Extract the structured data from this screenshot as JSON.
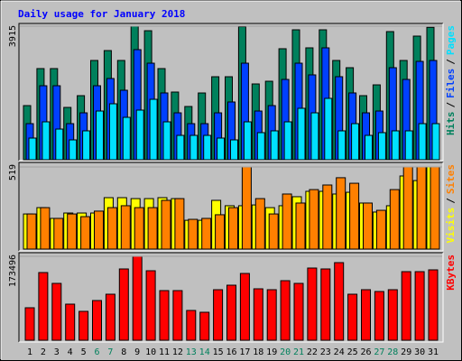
{
  "chart_data": [
    {
      "type": "bar",
      "title": "Daily usage for January 2018",
      "title_color": "#0000ff",
      "ylim": [
        0,
        3915
      ],
      "yticks": [
        3915
      ],
      "legend_separator": "/",
      "series": [
        {
          "name": "Hits",
          "color": "#00805c",
          "values": [
            1587,
            2672,
            2672,
            1534,
            1878,
            2910,
            3200,
            2910,
            3915,
            3782,
            2672,
            1984,
            1561,
            1957,
            2433,
            2433,
            3900,
            2222,
            2301,
            3254,
            3809,
            3280,
            3809,
            2910,
            2698,
            1878,
            2195,
            3756,
            2910,
            3624,
            3880
          ]
        },
        {
          "name": "Files",
          "color": "#0040ff",
          "values": [
            1058,
            2169,
            2169,
            1058,
            1375,
            2169,
            2381,
            2037,
            3227,
            2830,
            1958,
            1375,
            1058,
            1058,
            1375,
            1693,
            2830,
            1428,
            1587,
            2354,
            2830,
            2487,
            3280,
            2434,
            1958,
            1375,
            1428,
            2698,
            2354,
            2883,
            2910
          ]
        },
        {
          "name": "Pages",
          "color": "#00e0ff",
          "values": [
            635,
            1111,
            899,
            582,
            847,
            1428,
            1640,
            1243,
            1455,
            1772,
            1111,
            714,
            714,
            714,
            635,
            582,
            1111,
            794,
            847,
            1111,
            1508,
            1375,
            1799,
            847,
            1058,
            714,
            794,
            847,
            847,
            1058,
            1058
          ]
        }
      ]
    },
    {
      "type": "bar",
      "ylim": [
        0,
        519
      ],
      "yticks": [
        519
      ],
      "legend_separator": "/",
      "series": [
        {
          "name": "Visits",
          "color": "#ffff00",
          "values": [
            222,
            262,
            194,
            228,
            228,
            228,
            325,
            325,
            319,
            319,
            325,
            319,
            182,
            182,
            308,
            274,
            274,
            279,
            262,
            274,
            331,
            365,
            365,
            348,
            359,
            291,
            234,
            274,
            462,
            433,
            519
          ]
        },
        {
          "name": "Sites",
          "color": "#ff8000",
          "values": [
            222,
            262,
            194,
            222,
            205,
            240,
            262,
            274,
            262,
            262,
            308,
            319,
            188,
            194,
            217,
            262,
            519,
            319,
            222,
            348,
            291,
            376,
            405,
            451,
            416,
            291,
            245,
            376,
            519,
            519,
            519
          ]
        }
      ]
    },
    {
      "type": "bar",
      "ylim": [
        0,
        173496
      ],
      "yticks": [
        173496
      ],
      "categories": [
        "1",
        "2",
        "3",
        "4",
        "5",
        "6",
        "7",
        "8",
        "9",
        "10",
        "11",
        "12",
        "13",
        "14",
        "15",
        "16",
        "17",
        "18",
        "19",
        "20",
        "21",
        "22",
        "23",
        "24",
        "25",
        "26",
        "27",
        "28",
        "29",
        "30",
        "31"
      ],
      "category_colors": [
        "#000000",
        "#000000",
        "#000000",
        "#000000",
        "#000000",
        "#00805c",
        "#00805c",
        "#000000",
        "#000000",
        "#000000",
        "#000000",
        "#000000",
        "#00805c",
        "#00805c",
        "#000000",
        "#000000",
        "#000000",
        "#000000",
        "#000000",
        "#00805c",
        "#00805c",
        "#000000",
        "#000000",
        "#000000",
        "#000000",
        "#000000",
        "#00805c",
        "#00805c",
        "#000000",
        "#000000",
        "#000000"
      ],
      "series": [
        {
          "name": "KBytes",
          "color": "#ff0000",
          "values": [
            67159,
            139914,
            117528,
            74621,
            59697,
            82083,
            95142,
            147376,
            173496,
            143645,
            102604,
            102604,
            61563,
            57832,
            104470,
            113797,
            138048,
            106335,
            104470,
            123124,
            117528,
            149244,
            147376,
            160434,
            95142,
            104470,
            100739,
            104470,
            141780,
            141780,
            145511
          ]
        }
      ]
    }
  ]
}
